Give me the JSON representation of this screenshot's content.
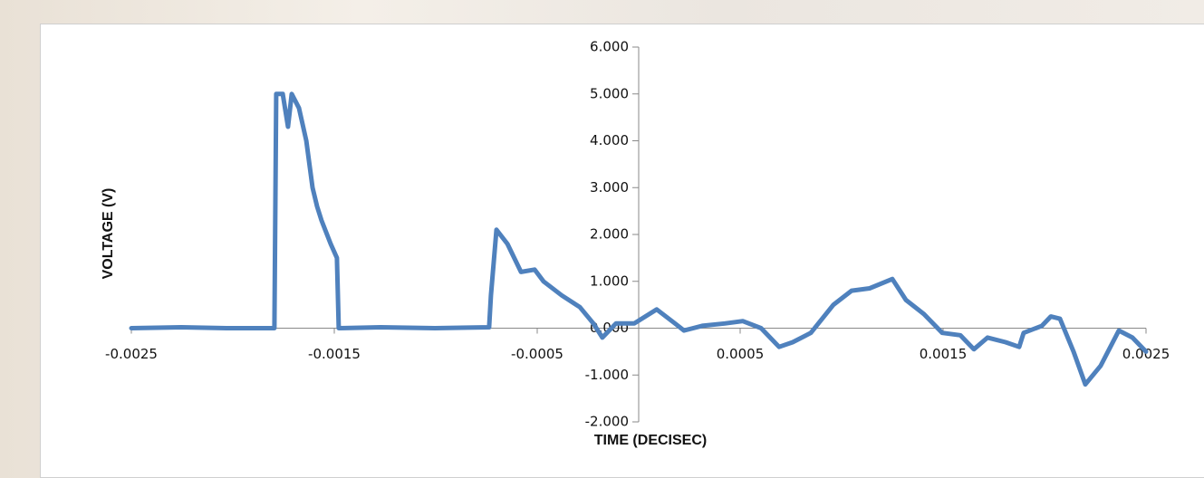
{
  "chart_data": {
    "type": "line",
    "xlabel": "TIME (DECISEC)",
    "ylabel": "VOLTAGE (V)",
    "x": [
      -0.0025,
      -0.002254,
      -0.002031,
      -0.001808,
      -0.001795,
      -0.001786,
      -0.001754,
      -0.001728,
      -0.00171,
      -0.001674,
      -0.001638,
      -0.001607,
      -0.001585,
      -0.001563,
      -0.001518,
      -0.001487,
      -0.001478,
      -0.001272,
      -0.001004,
      -0.000737,
      -0.000728,
      -0.000701,
      -0.000647,
      -0.00058,
      -0.000513,
      -0.000469,
      -0.000379,
      -0.00029,
      -0.000223,
      -0.000179,
      -0.000112,
      -2.2e-05,
      8.9e-05,
      0.000179,
      0.000223,
      0.000313,
      0.000424,
      0.000513,
      0.000603,
      0.000692,
      0.000759,
      0.000848,
      0.00096,
      0.001049,
      0.001138,
      0.00125,
      0.001317,
      0.001406,
      0.001496,
      0.001585,
      0.001652,
      0.001719,
      0.001808,
      0.001875,
      0.001897,
      0.001987,
      0.002031,
      0.002076,
      0.002143,
      0.002201,
      0.002277,
      0.002366,
      0.002433,
      0.0025
    ],
    "values": [
      0,
      0.02,
      0,
      0,
      0,
      5.0,
      5.0,
      4.3,
      5.0,
      4.7,
      4.0,
      3.0,
      2.6,
      2.3,
      1.8,
      1.5,
      0,
      0.02,
      0,
      0.02,
      0.7,
      2.1,
      1.8,
      1.2,
      1.25,
      1.0,
      0.7,
      0.45,
      0.1,
      -0.2,
      0.1,
      0.1,
      0.4,
      0.1,
      -0.05,
      0.05,
      0.1,
      0.15,
      0,
      -0.4,
      -0.3,
      -0.1,
      0.5,
      0.8,
      0.85,
      1.05,
      0.6,
      0.3,
      -0.1,
      -0.15,
      -0.45,
      -0.2,
      -0.3,
      -0.4,
      -0.1,
      0.05,
      0.25,
      0.2,
      -0.5,
      -1.2,
      -0.8,
      -0.05,
      -0.2,
      -0.5
    ],
    "color": "#4f81bd",
    "xlim": [
      -0.0025,
      0.0025
    ],
    "xticks": [
      -0.0025,
      -0.0015,
      -0.0005,
      0.0005,
      0.0015,
      0.0025
    ],
    "ylim": [
      -2,
      6
    ],
    "yticks": [
      {
        "value": -2,
        "label": "-2.000"
      },
      {
        "value": -1,
        "label": "-1.000"
      },
      {
        "value": 0,
        "label": "0.000"
      },
      {
        "value": 1,
        "label": "1.000"
      },
      {
        "value": 2,
        "label": "2.000"
      },
      {
        "value": 3,
        "label": "3.000"
      },
      {
        "value": 4,
        "label": "4.000"
      },
      {
        "value": 5,
        "label": "5.000"
      },
      {
        "value": 6,
        "label": "6.000"
      }
    ]
  }
}
